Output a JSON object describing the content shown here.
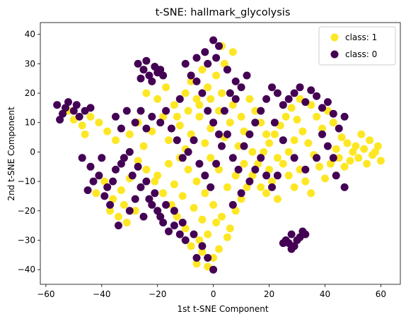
{
  "chart_data": {
    "type": "scatter",
    "title": "t-SNE: hallmark_glycolysis",
    "xlabel": "1st t-SNE Component",
    "ylabel": "2nd t-SNE Component",
    "xlim": [
      -62,
      67
    ],
    "ylim": [
      -45,
      44
    ],
    "xticks": [
      -60,
      -40,
      -20,
      0,
      20,
      40,
      60
    ],
    "yticks": [
      -40,
      -30,
      -20,
      -10,
      0,
      10,
      20,
      30,
      40
    ],
    "grid": false,
    "legend_position": "top-right",
    "series": [
      {
        "name": "class: 1",
        "color": "#fde725",
        "points": [
          [
            -41,
            10
          ],
          [
            -38,
            7
          ],
          [
            -35,
            4
          ],
          [
            -30,
            6
          ],
          [
            -27,
            10
          ],
          [
            -25,
            2
          ],
          [
            -22,
            7
          ],
          [
            -18,
            12
          ],
          [
            -16,
            4
          ],
          [
            -12,
            9
          ],
          [
            -10,
            1
          ],
          [
            -8,
            6
          ],
          [
            -5,
            12
          ],
          [
            -3,
            3
          ],
          [
            -1,
            8
          ],
          [
            2,
            14
          ],
          [
            4,
            5
          ],
          [
            6,
            10
          ],
          [
            9,
            2
          ],
          [
            11,
            7
          ],
          [
            -14,
            16
          ],
          [
            -10,
            20
          ],
          [
            -6,
            18
          ],
          [
            -2,
            22
          ],
          [
            1,
            26
          ],
          [
            4,
            30
          ],
          [
            7,
            34
          ],
          [
            3,
            36
          ],
          [
            -4,
            28
          ],
          [
            -8,
            24
          ],
          [
            -12,
            -2
          ],
          [
            -9,
            -6
          ],
          [
            -6,
            -10
          ],
          [
            -3,
            -14
          ],
          [
            0,
            -18
          ],
          [
            3,
            -22
          ],
          [
            6,
            -26
          ],
          [
            1,
            -24
          ],
          [
            -2,
            -28
          ],
          [
            -5,
            -30
          ],
          [
            -8,
            -32
          ],
          [
            -4,
            -34
          ],
          [
            0,
            -36
          ],
          [
            -6,
            -38
          ],
          [
            -2,
            -39
          ],
          [
            2,
            -33
          ],
          [
            5,
            -29
          ],
          [
            -10,
            -26
          ],
          [
            -13,
            -22
          ],
          [
            -15,
            -18
          ],
          [
            -18,
            -14
          ],
          [
            -21,
            -10
          ],
          [
            -24,
            -6
          ],
          [
            -27,
            -3
          ],
          [
            -30,
            -9
          ],
          [
            -33,
            -13
          ],
          [
            -36,
            -16
          ],
          [
            -32,
            -18
          ],
          [
            -28,
            -20
          ],
          [
            -20,
            -8
          ],
          [
            -16,
            -4
          ],
          [
            -14,
            -11
          ],
          [
            -11,
            -15
          ],
          [
            -7,
            -19
          ],
          [
            -4,
            -23
          ],
          [
            8,
            -20
          ],
          [
            10,
            -16
          ],
          [
            12,
            -12
          ],
          [
            14,
            -8
          ],
          [
            16,
            -4
          ],
          [
            18,
            0
          ],
          [
            20,
            3
          ],
          [
            22,
            6
          ],
          [
            24,
            9
          ],
          [
            26,
            12
          ],
          [
            28,
            15
          ],
          [
            30,
            11
          ],
          [
            32,
            7
          ],
          [
            34,
            3
          ],
          [
            36,
            -1
          ],
          [
            38,
            -5
          ],
          [
            40,
            -9
          ],
          [
            42,
            -4
          ],
          [
            44,
            1
          ],
          [
            46,
            5
          ],
          [
            48,
            3
          ],
          [
            50,
            0
          ],
          [
            52,
            -2
          ],
          [
            54,
            1
          ],
          [
            56,
            4
          ],
          [
            58,
            0
          ],
          [
            60,
            -3
          ],
          [
            55,
            -4
          ],
          [
            51,
            2
          ],
          [
            53,
            6
          ],
          [
            57,
            -1
          ],
          [
            59,
            2
          ],
          [
            49,
            -3
          ],
          [
            47,
            -5
          ],
          [
            45,
            -2
          ],
          [
            25,
            -4
          ],
          [
            27,
            -8
          ],
          [
            29,
            -12
          ],
          [
            31,
            -6
          ],
          [
            33,
            -10
          ],
          [
            35,
            -14
          ],
          [
            21,
            -10
          ],
          [
            19,
            -14
          ],
          [
            17,
            -12
          ],
          [
            23,
            -16
          ],
          [
            -44,
            12
          ],
          [
            -47,
            9
          ],
          [
            -50,
            11
          ],
          [
            -46,
            6
          ],
          [
            -52,
            14
          ],
          [
            -39,
            -10
          ],
          [
            -42,
            -14
          ],
          [
            -37,
            -20
          ],
          [
            -34,
            -22
          ],
          [
            -31,
            -24
          ],
          [
            -20,
            18
          ],
          [
            -24,
            20
          ],
          [
            -17,
            22
          ],
          [
            -13,
            12
          ],
          [
            -9,
            14
          ],
          [
            -5,
            16
          ],
          [
            -1,
            18
          ],
          [
            3,
            20
          ],
          [
            7,
            16
          ],
          [
            10,
            12
          ],
          [
            13,
            18
          ],
          [
            15,
            14
          ],
          [
            17,
            10
          ],
          [
            19,
            6
          ],
          [
            14,
            0
          ],
          [
            11,
            -4
          ],
          [
            8,
            -8
          ],
          [
            5,
            -12
          ],
          [
            2,
            -6
          ],
          [
            -1,
            -2
          ],
          [
            37,
            12
          ],
          [
            39,
            8
          ],
          [
            41,
            14
          ],
          [
            43,
            10
          ],
          [
            35,
            16
          ],
          [
            31,
            18
          ],
          [
            29,
            4
          ],
          [
            27,
            0
          ],
          [
            23,
            -2
          ],
          [
            20,
            -6
          ]
        ]
      },
      {
        "name": "class: 0",
        "color": "#440154",
        "points": [
          [
            -56,
            16
          ],
          [
            -54,
            13
          ],
          [
            -52,
            17
          ],
          [
            -50,
            14
          ],
          [
            -48,
            12
          ],
          [
            -55,
            11
          ],
          [
            -53,
            15
          ],
          [
            -49,
            16
          ],
          [
            -46,
            14
          ],
          [
            -44,
            15
          ],
          [
            -47,
            -2
          ],
          [
            -44,
            -5
          ],
          [
            -41,
            -8
          ],
          [
            -38,
            -12
          ],
          [
            -35,
            -6
          ],
          [
            -32,
            -2
          ],
          [
            -29,
            -8
          ],
          [
            -26,
            -12
          ],
          [
            -23,
            -16
          ],
          [
            -20,
            -20
          ],
          [
            -40,
            -2
          ],
          [
            -43,
            -10
          ],
          [
            -45,
            -13
          ],
          [
            -39,
            -15
          ],
          [
            -36,
            -10
          ],
          [
            -33,
            -4
          ],
          [
            -30,
            0
          ],
          [
            -27,
            -5
          ],
          [
            -24,
            -10
          ],
          [
            -21,
            -14
          ],
          [
            -25,
            28
          ],
          [
            -23,
            26
          ],
          [
            -21,
            29
          ],
          [
            -26,
            25
          ],
          [
            -24,
            31
          ],
          [
            -22,
            24
          ],
          [
            -19,
            28
          ],
          [
            -27,
            30
          ],
          [
            -20,
            27
          ],
          [
            -18,
            26
          ],
          [
            -10,
            30
          ],
          [
            -8,
            26
          ],
          [
            -6,
            32
          ],
          [
            -3,
            34
          ],
          [
            0,
            38
          ],
          [
            2,
            36
          ],
          [
            5,
            28
          ],
          [
            8,
            24
          ],
          [
            1,
            32
          ],
          [
            -2,
            30
          ],
          [
            -15,
            8
          ],
          [
            -13,
            4
          ],
          [
            -11,
            -2
          ],
          [
            -9,
            0
          ],
          [
            -7,
            4
          ],
          [
            -5,
            -4
          ],
          [
            -3,
            -8
          ],
          [
            -1,
            -12
          ],
          [
            1,
            -4
          ],
          [
            3,
            2
          ],
          [
            5,
            6
          ],
          [
            7,
            -2
          ],
          [
            9,
            -6
          ],
          [
            11,
            2
          ],
          [
            13,
            6
          ],
          [
            15,
            10
          ],
          [
            17,
            14
          ],
          [
            19,
            18
          ],
          [
            21,
            22
          ],
          [
            23,
            20
          ],
          [
            25,
            16
          ],
          [
            27,
            18
          ],
          [
            29,
            20
          ],
          [
            31,
            22
          ],
          [
            33,
            17
          ],
          [
            35,
            21
          ],
          [
            37,
            19
          ],
          [
            39,
            15
          ],
          [
            41,
            17
          ],
          [
            43,
            13
          ],
          [
            45,
            8
          ],
          [
            47,
            12
          ],
          [
            39,
            6
          ],
          [
            41,
            2
          ],
          [
            43,
            -2
          ],
          [
            37,
            -2
          ],
          [
            33,
            -6
          ],
          [
            29,
            -2
          ],
          [
            25,
            4
          ],
          [
            22,
            10
          ],
          [
            -16,
            -27
          ],
          [
            -14,
            -25
          ],
          [
            -12,
            -28
          ],
          [
            -18,
            -24
          ],
          [
            -10,
            -30
          ],
          [
            -7,
            -28
          ],
          [
            -4,
            -32
          ],
          [
            -2,
            -36
          ],
          [
            -6,
            -36
          ],
          [
            0,
            -40
          ],
          [
            28,
            -28
          ],
          [
            30,
            -30
          ],
          [
            27,
            -31
          ],
          [
            32,
            -27
          ],
          [
            26,
            -30
          ],
          [
            31,
            -29
          ],
          [
            29,
            -32
          ],
          [
            25,
            -31
          ],
          [
            33,
            -28
          ],
          [
            28,
            -33
          ],
          [
            -35,
            12
          ],
          [
            -33,
            8
          ],
          [
            -31,
            14
          ],
          [
            -28,
            10
          ],
          [
            -26,
            14
          ],
          [
            -24,
            8
          ],
          [
            -22,
            12
          ],
          [
            -19,
            10
          ],
          [
            -17,
            14
          ],
          [
            -12,
            18
          ],
          [
            -37,
            -18
          ],
          [
            -34,
            -25
          ],
          [
            -30,
            -20
          ],
          [
            -28,
            -16
          ],
          [
            -25,
            -22
          ],
          [
            -22,
            -18
          ],
          [
            -19,
            -22
          ],
          [
            -17,
            -18
          ],
          [
            -14,
            -20
          ],
          [
            -11,
            -24
          ],
          [
            47,
            -12
          ],
          [
            44,
            -8
          ],
          [
            13,
            -10
          ],
          [
            15,
            -6
          ],
          [
            17,
            -2
          ],
          [
            19,
            -8
          ],
          [
            21,
            -12
          ],
          [
            23,
            -8
          ],
          [
            10,
            -14
          ],
          [
            7,
            -18
          ],
          [
            -2,
            14
          ],
          [
            0,
            10
          ],
          [
            2,
            6
          ],
          [
            4,
            14
          ],
          [
            6,
            20
          ],
          [
            8,
            18
          ],
          [
            10,
            22
          ],
          [
            12,
            26
          ],
          [
            -4,
            20
          ],
          [
            -6,
            24
          ]
        ]
      }
    ]
  }
}
